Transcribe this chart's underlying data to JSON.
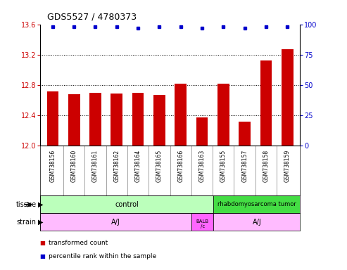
{
  "title": "GDS5527 / 4780373",
  "samples": [
    "GSM738156",
    "GSM738160",
    "GSM738161",
    "GSM738162",
    "GSM738164",
    "GSM738165",
    "GSM738166",
    "GSM738163",
    "GSM738155",
    "GSM738157",
    "GSM738158",
    "GSM738159"
  ],
  "bar_values": [
    12.72,
    12.68,
    12.7,
    12.69,
    12.7,
    12.67,
    12.82,
    12.37,
    12.82,
    12.32,
    13.12,
    13.27
  ],
  "percentile_values": [
    98,
    98,
    98,
    98,
    97,
    98,
    98,
    97,
    98,
    97,
    98,
    98
  ],
  "ylim_left": [
    12,
    13.6
  ],
  "ylim_right": [
    0,
    100
  ],
  "yticks_left": [
    12,
    12.4,
    12.8,
    13.2,
    13.6
  ],
  "yticks_right": [
    0,
    25,
    50,
    75,
    100
  ],
  "bar_color": "#cc0000",
  "dot_color": "#0000cc",
  "tissue_control_color": "#bbffbb",
  "tissue_rhab_color": "#44dd44",
  "strain_aj_color": "#ffbbff",
  "strain_balb_color": "#ff66ff",
  "control_n": 8,
  "rhab_n": 4,
  "aj1_n": 7,
  "balb_n": 1,
  "aj2_n": 4,
  "tissue_label": "tissue",
  "strain_label": "strain",
  "legend_bar_label": "transformed count",
  "legend_dot_label": "percentile rank within the sample"
}
